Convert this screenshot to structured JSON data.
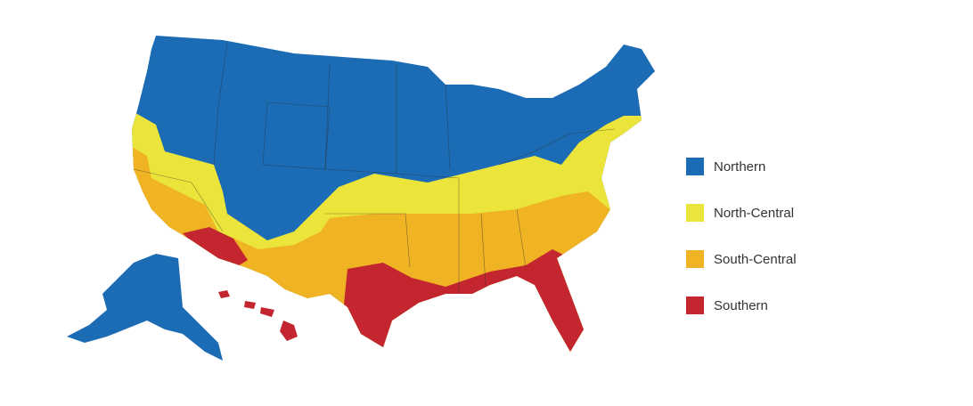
{
  "legend": {
    "items": [
      {
        "label": "Northern",
        "color": "#1b6cb4"
      },
      {
        "label": "North-Central",
        "color": "#ebe43a"
      },
      {
        "label": "South-Central",
        "color": "#f0b324"
      },
      {
        "label": "Southern",
        "color": "#c3262f"
      }
    ]
  }
}
